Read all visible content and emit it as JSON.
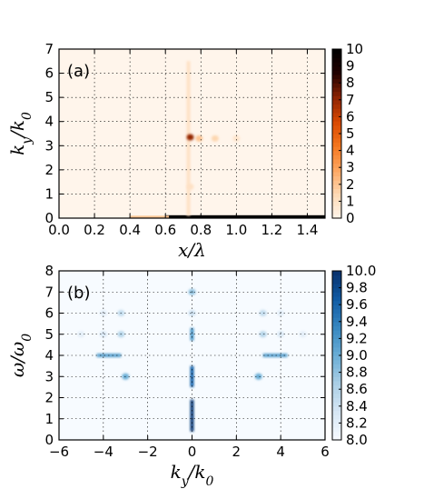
{
  "chart_data": [
    {
      "type": "heatmap",
      "panel_label": "(a)",
      "xlabel": "x/λ",
      "ylabel": "k_y/k_0",
      "xlim": [
        0.0,
        1.5
      ],
      "ylim": [
        0,
        7
      ],
      "xticks": [
        0.0,
        0.2,
        0.4,
        0.6,
        0.8,
        1.0,
        1.2,
        1.4
      ],
      "xtick_labels": [
        "0.0",
        "0.2",
        "0.4",
        "0.6",
        "0.8",
        "1.0",
        "1.2",
        "1.4"
      ],
      "yticks": [
        0,
        1,
        2,
        3,
        4,
        5,
        6,
        7
      ],
      "ytick_labels": [
        "0",
        "1",
        "2",
        "3",
        "4",
        "5",
        "6",
        "7"
      ],
      "colorbar": {
        "range": [
          0,
          10
        ],
        "ticks": [
          0,
          1,
          2,
          3,
          4,
          5,
          6,
          7,
          8,
          9,
          10
        ],
        "tick_labels": [
          "0",
          "1",
          "2",
          "3",
          "4",
          "5",
          "6",
          "7",
          "8",
          "9",
          "10"
        ],
        "colormap": "Oranges",
        "colors": [
          "#fff5eb",
          "#fdd9b4",
          "#fda762",
          "#f4761e",
          "#d84801",
          "#8e2403",
          "#220100",
          "#000000"
        ]
      },
      "grid": true,
      "features": [
        {
          "kind": "band",
          "x": [
            0.6,
            1.5
          ],
          "y": [
            0.0,
            0.12
          ],
          "value": 10
        },
        {
          "kind": "band",
          "x": [
            0.4,
            0.62
          ],
          "y": [
            0.0,
            0.1
          ],
          "value": 2
        },
        {
          "kind": "vertical_streak",
          "x": 0.73,
          "y": [
            0.1,
            6.5
          ],
          "value": 1
        },
        {
          "kind": "spot",
          "x": 0.74,
          "y": 3.35,
          "value": 7
        },
        {
          "kind": "spot",
          "x": 0.79,
          "y": 3.3,
          "value": 2
        },
        {
          "kind": "spot",
          "x": 0.88,
          "y": 3.3,
          "value": 1.5
        },
        {
          "kind": "spot",
          "x": 1.0,
          "y": 3.3,
          "value": 0.8
        },
        {
          "kind": "spot",
          "x": 0.74,
          "y": 1.3,
          "value": 1
        }
      ]
    },
    {
      "type": "heatmap",
      "panel_label": "(b)",
      "xlabel": "k_y/k_0",
      "ylabel": "ω/ω_0",
      "xlim": [
        -6,
        6
      ],
      "ylim": [
        0,
        8
      ],
      "xticks": [
        -6,
        -4,
        -2,
        0,
        2,
        4,
        6
      ],
      "xtick_labels": [
        "−6",
        "−4",
        "−2",
        "0",
        "2",
        "4",
        "6"
      ],
      "yticks": [
        0,
        1,
        2,
        3,
        4,
        5,
        6,
        7,
        8
      ],
      "ytick_labels": [
        "0",
        "1",
        "2",
        "3",
        "4",
        "5",
        "6",
        "7",
        "8"
      ],
      "colorbar": {
        "range": [
          8.0,
          10.0
        ],
        "ticks": [
          8.0,
          8.2,
          8.4,
          8.6,
          8.8,
          9.0,
          9.2,
          9.4,
          9.6,
          9.8,
          10.0
        ],
        "tick_labels": [
          "8.0",
          "8.2",
          "8.4",
          "8.6",
          "8.8",
          "9.0",
          "9.2",
          "9.4",
          "9.6",
          "9.8",
          "10.0"
        ],
        "colormap": "Blues",
        "colors": [
          "#f7fbff",
          "#d6e6f4",
          "#abcfe5",
          "#6aaed6",
          "#3787c0",
          "#105ba4",
          "#08306b"
        ]
      },
      "grid": true,
      "features": [
        {
          "kind": "vertical_streak",
          "x": 0.0,
          "y": [
            0.4,
            1.9
          ],
          "value": 9.9
        },
        {
          "kind": "vertical_streak",
          "x": 0.0,
          "y": [
            2.5,
            3.5
          ],
          "value": 9.6
        },
        {
          "kind": "vertical_streak",
          "x": 0.0,
          "y": [
            4.7,
            5.3
          ],
          "value": 9.2
        },
        {
          "kind": "spot",
          "x": 0.0,
          "y": 7.0,
          "value": 8.8
        },
        {
          "kind": "spot",
          "x": 0.0,
          "y": 6.0,
          "value": 8.4
        },
        {
          "kind": "spot",
          "x": -3.0,
          "y": 3.0,
          "value": 9.0
        },
        {
          "kind": "spot",
          "x": 3.0,
          "y": 3.0,
          "value": 9.0
        },
        {
          "kind": "horizontal_streak",
          "x": [
            -4.3,
            -3.2
          ],
          "y": 4.0,
          "value": 9.1
        },
        {
          "kind": "horizontal_streak",
          "x": [
            3.2,
            4.3
          ],
          "y": 4.0,
          "value": 9.1
        },
        {
          "kind": "spot",
          "x": -3.2,
          "y": 5.0,
          "value": 8.6
        },
        {
          "kind": "spot",
          "x": 3.2,
          "y": 5.0,
          "value": 8.6
        },
        {
          "kind": "spot",
          "x": -3.2,
          "y": 6.0,
          "value": 8.5
        },
        {
          "kind": "spot",
          "x": 3.2,
          "y": 6.0,
          "value": 8.5
        },
        {
          "kind": "spot",
          "x": -4.0,
          "y": 5.0,
          "value": 8.3
        },
        {
          "kind": "spot",
          "x": 4.0,
          "y": 5.0,
          "value": 8.3
        },
        {
          "kind": "spot",
          "x": -5.0,
          "y": 5.0,
          "value": 8.2
        },
        {
          "kind": "spot",
          "x": 5.0,
          "y": 5.0,
          "value": 8.2
        },
        {
          "kind": "spot",
          "x": -4.0,
          "y": 6.0,
          "value": 8.2
        },
        {
          "kind": "spot",
          "x": 4.0,
          "y": 6.0,
          "value": 8.2
        }
      ]
    }
  ]
}
